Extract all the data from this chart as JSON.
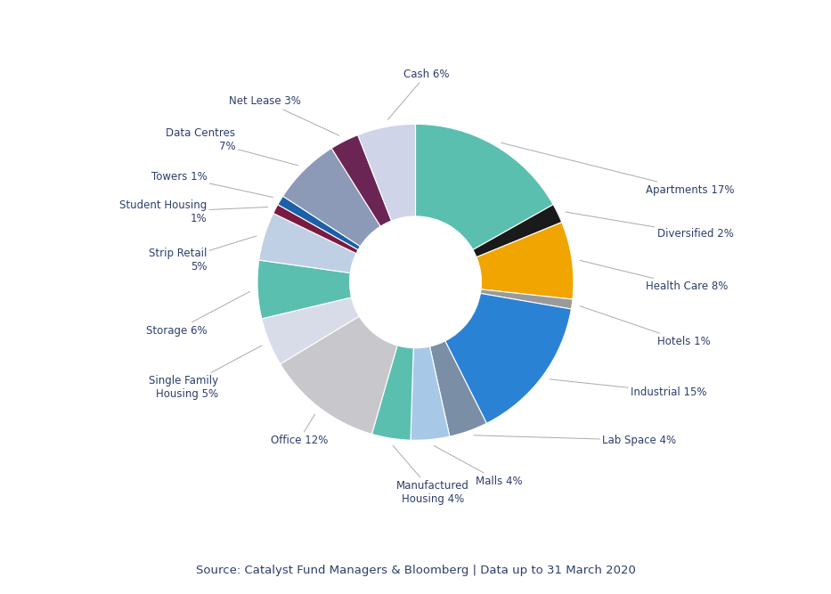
{
  "source_text": "Source: Catalyst Fund Managers & Bloomberg | Data up to 31 March 2020",
  "segments": [
    {
      "label": "Apartments 17%",
      "value": 17,
      "color": "#5bbfb0"
    },
    {
      "label": "Diversified 2%",
      "value": 2,
      "color": "#1a1a1a"
    },
    {
      "label": "Health Care 8%",
      "value": 8,
      "color": "#f0a500"
    },
    {
      "label": "Hotels 1%",
      "value": 1,
      "color": "#9a9a9a"
    },
    {
      "label": "Industrial 15%",
      "value": 15,
      "color": "#2a82d4"
    },
    {
      "label": "Lab Space 4%",
      "value": 4,
      "color": "#7a8fa6"
    },
    {
      "label": "Malls 4%",
      "value": 4,
      "color": "#a8c8e8"
    },
    {
      "label": "Manufactured\nHousing 4%",
      "value": 4,
      "color": "#5bbfb0"
    },
    {
      "label": "Office 12%",
      "value": 12,
      "color": "#c8c8cc"
    },
    {
      "label": "Single Family\nHousing 5%",
      "value": 5,
      "color": "#d8dce8"
    },
    {
      "label": "Storage 6%",
      "value": 6,
      "color": "#5bbfb0"
    },
    {
      "label": "Strip Retail\n5%",
      "value": 5,
      "color": "#c0d0e4"
    },
    {
      "label": "Student Housing\n1%",
      "value": 1,
      "color": "#7a1a40"
    },
    {
      "label": "Towers 1%",
      "value": 1,
      "color": "#1a60aa"
    },
    {
      "label": "Data Centres\n7%",
      "value": 7,
      "color": "#8c9ab8"
    },
    {
      "label": "Net Lease 3%",
      "value": 3,
      "color": "#6a2555"
    },
    {
      "label": "Cash 6%",
      "value": 6,
      "color": "#d0d4e8"
    }
  ],
  "label_fontsize": 8.5,
  "label_color": "#2c3e6b",
  "source_fontsize": 9.5,
  "background_color": "#ffffff",
  "wedge_linewidth": 0.8,
  "wedge_edgecolor": "#ffffff"
}
